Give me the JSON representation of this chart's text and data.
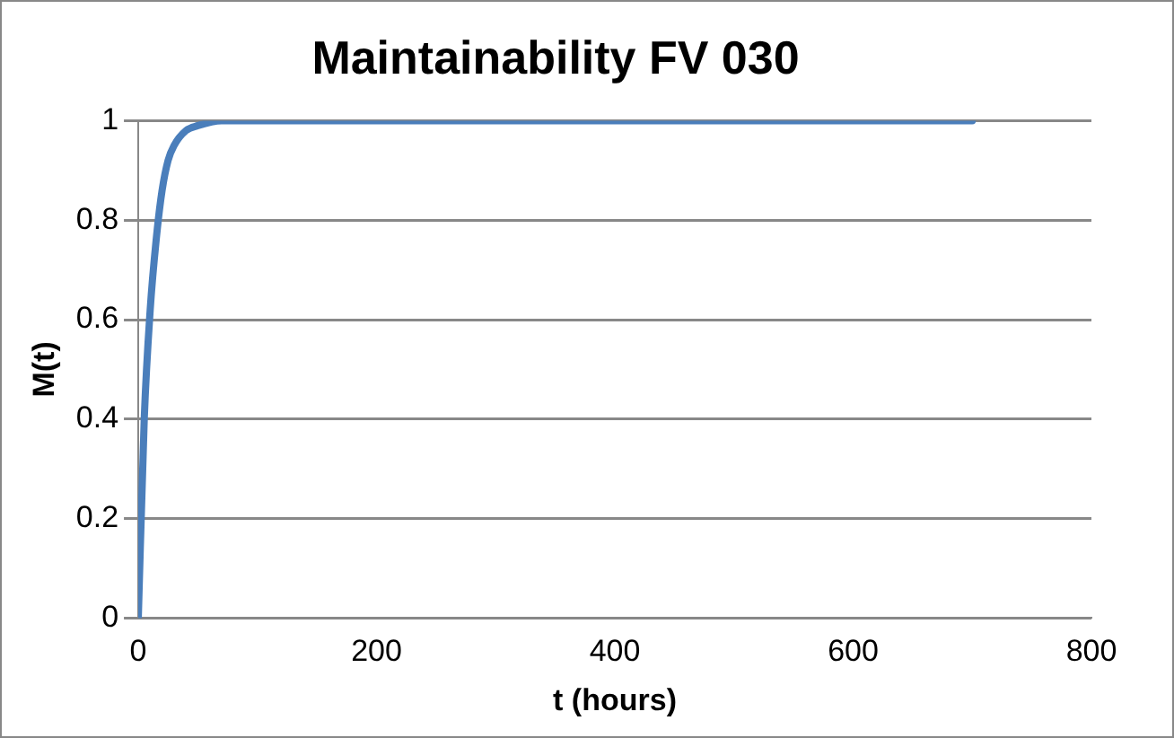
{
  "chart_data": {
    "type": "line",
    "title": "Maintainability FV 030",
    "xlabel": "t (hours)",
    "ylabel": "M(t)",
    "series": [
      {
        "color": "#4a7ebb",
        "x": [
          0,
          5,
          10,
          15,
          20,
          25,
          30,
          40,
          50,
          70,
          100,
          300,
          500,
          700
        ],
        "values": [
          0,
          0.4,
          0.62,
          0.76,
          0.86,
          0.92,
          0.95,
          0.98,
          0.99,
          1,
          1,
          1,
          1,
          1
        ]
      }
    ],
    "xlim": [
      0,
      800
    ],
    "xticks": [
      0,
      200,
      400,
      600,
      800
    ],
    "ylim": [
      0,
      1
    ],
    "yticks": [
      0,
      0.2,
      0.4,
      0.6,
      0.8,
      1
    ],
    "grid": "y",
    "legend": false,
    "marker": "none",
    "line_style": "solid"
  }
}
